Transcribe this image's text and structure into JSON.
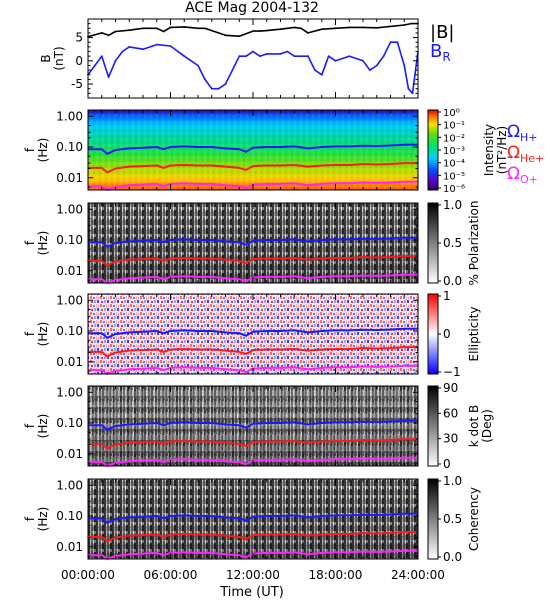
{
  "chart_data": {
    "title": "ACE Mag 2004-132",
    "type": "multi-panel spectrogram",
    "xlabel": "Time (UT)",
    "x_ticks": [
      "00:00:00",
      "06:00:00",
      "12:00:00",
      "18:00:00",
      "24:00:00"
    ],
    "x_range_hours": [
      0,
      24
    ],
    "panels": [
      {
        "type": "line",
        "ylabel": "B",
        "yunit": "(nT)",
        "ylim": [
          -8,
          9
        ],
        "y_ticks": [
          -5,
          0,
          5
        ],
        "legend_position": "right",
        "series": [
          {
            "name": "|B|",
            "color": "#000000",
            "x": [
              0,
              1,
              1.5,
              2,
              3,
              4,
              5,
              5.5,
              6,
              7,
              8,
              8.5,
              9,
              10,
              11,
              12,
              12.5,
              13,
              14,
              15,
              15.5,
              16,
              17,
              18,
              19,
              20,
              21,
              22,
              23,
              23.5,
              24
            ],
            "y": [
              5.2,
              6.0,
              5.5,
              6.3,
              6.6,
              7.0,
              7.0,
              6.3,
              7.2,
              7.3,
              7.0,
              7.0,
              6.5,
              5.5,
              5.3,
              6.4,
              6.4,
              6.5,
              6.8,
              7.2,
              7.0,
              6.0,
              6.8,
              7.0,
              7.2,
              7.2,
              7.1,
              7.4,
              7.7,
              8.0,
              8.0
            ]
          },
          {
            "name": "B",
            "subscript": "R",
            "color": "#1a1aff",
            "x": [
              0,
              0.5,
              1,
              1.5,
              2,
              2.5,
              3,
              4,
              5,
              6,
              7,
              8,
              8.5,
              9,
              9.5,
              10,
              11,
              11.5,
              12,
              12.5,
              13,
              14,
              14.5,
              15,
              16,
              16.5,
              17,
              17.5,
              18,
              19,
              20,
              20.5,
              21,
              21.5,
              22,
              22.5,
              23,
              23.3,
              23.6,
              24
            ],
            "y": [
              -3,
              -1,
              1,
              -3.5,
              0,
              2,
              3,
              2.5,
              3.5,
              3.2,
              1,
              -1,
              -4,
              -6,
              -6,
              -5,
              1,
              1,
              2,
              1,
              1.5,
              1.5,
              2,
              1,
              1,
              -2,
              -3,
              1,
              0,
              1,
              0,
              -2,
              -1,
              1,
              4,
              4,
              -1,
              -6,
              -7,
              2
            ]
          }
        ]
      },
      {
        "type": "heatmap",
        "ylabel": "f",
        "yunit": "(Hz)",
        "y_ticks": [
          "1.00",
          "0.10",
          "0.01"
        ],
        "ylim": [
          0.004,
          1.6
        ],
        "colorbar": {
          "label": "Intensity",
          "unit": "(nT²/Hz)",
          "ticks": [
            "10⁰",
            "10⁻¹",
            "10⁻²",
            "10⁻³",
            "10⁻⁴",
            "10⁻⁵",
            "10⁻⁶"
          ],
          "range_log10": [
            -6.8,
            0.2
          ],
          "palette": "rainbow"
        },
        "legend": [
          {
            "symbol": "Ω",
            "sub": "H+",
            "color": "#1a1aff"
          },
          {
            "symbol": "Ω",
            "sub": "He+",
            "color": "#ff1a1a"
          },
          {
            "symbol": "Ω",
            "sub": "O+",
            "color": "#ff22ff"
          }
        ]
      },
      {
        "type": "heatmap",
        "ylabel": "f",
        "yunit": "(Hz)",
        "y_ticks": [
          "1.00",
          "0.10",
          "0.01"
        ],
        "colorbar": {
          "label": "% Polarization",
          "ticks": [
            "1.0",
            "0.5",
            "0.0"
          ],
          "range": [
            0,
            1
          ],
          "palette": "gray"
        }
      },
      {
        "type": "heatmap",
        "ylabel": "f",
        "yunit": "(Hz)",
        "y_ticks": [
          "1.00",
          "0.10",
          "0.01"
        ],
        "colorbar": {
          "label": "Ellipticity",
          "ticks": [
            "1",
            "0",
            "−1"
          ],
          "range": [
            -1,
            1
          ],
          "palette": "blue-white-red"
        }
      },
      {
        "type": "heatmap",
        "ylabel": "f",
        "yunit": "(Hz)",
        "y_ticks": [
          "1.00",
          "0.10",
          "0.01"
        ],
        "colorbar": {
          "label": "k dot B",
          "unit": "(Deg)",
          "ticks": [
            "90",
            "60",
            "30",
            "0"
          ],
          "range": [
            0,
            90
          ],
          "palette": "gray"
        }
      },
      {
        "type": "heatmap",
        "ylabel": "f",
        "yunit": "(Hz)",
        "y_ticks": [
          "1.00",
          "0.10",
          "0.01"
        ],
        "colorbar": {
          "label": "Coherency",
          "ticks": [
            "1.0",
            "0.5",
            "0.0"
          ],
          "range": [
            0,
            1
          ],
          "palette": "gray"
        }
      }
    ],
    "gyrofrequency_lines": {
      "x": [
        0,
        1,
        1.4,
        2,
        3,
        4,
        5,
        5.5,
        6,
        7,
        8,
        9,
        10,
        11,
        11.5,
        12,
        13,
        14,
        15,
        16,
        17,
        18,
        19,
        20,
        21,
        22,
        23,
        24
      ],
      "H+": [
        0.085,
        0.085,
        0.06,
        0.08,
        0.09,
        0.095,
        0.1,
        0.085,
        0.1,
        0.105,
        0.1,
        0.1,
        0.09,
        0.085,
        0.07,
        0.095,
        0.1,
        0.1,
        0.105,
        0.09,
        0.1,
        0.105,
        0.105,
        0.11,
        0.108,
        0.112,
        0.118,
        0.12
      ],
      "He+": [
        0.021,
        0.021,
        0.015,
        0.02,
        0.023,
        0.024,
        0.025,
        0.021,
        0.025,
        0.026,
        0.025,
        0.025,
        0.023,
        0.021,
        0.018,
        0.024,
        0.025,
        0.025,
        0.026,
        0.023,
        0.025,
        0.026,
        0.026,
        0.028,
        0.027,
        0.028,
        0.03,
        0.03
      ],
      "O+": [
        0.0053,
        0.0053,
        0.004,
        0.005,
        0.0057,
        0.006,
        0.0063,
        0.0053,
        0.0063,
        0.0066,
        0.0063,
        0.0063,
        0.0057,
        0.0053,
        0.0046,
        0.006,
        0.0063,
        0.0063,
        0.0066,
        0.0057,
        0.0063,
        0.0066,
        0.0066,
        0.007,
        0.0068,
        0.007,
        0.0074,
        0.0075
      ]
    }
  }
}
